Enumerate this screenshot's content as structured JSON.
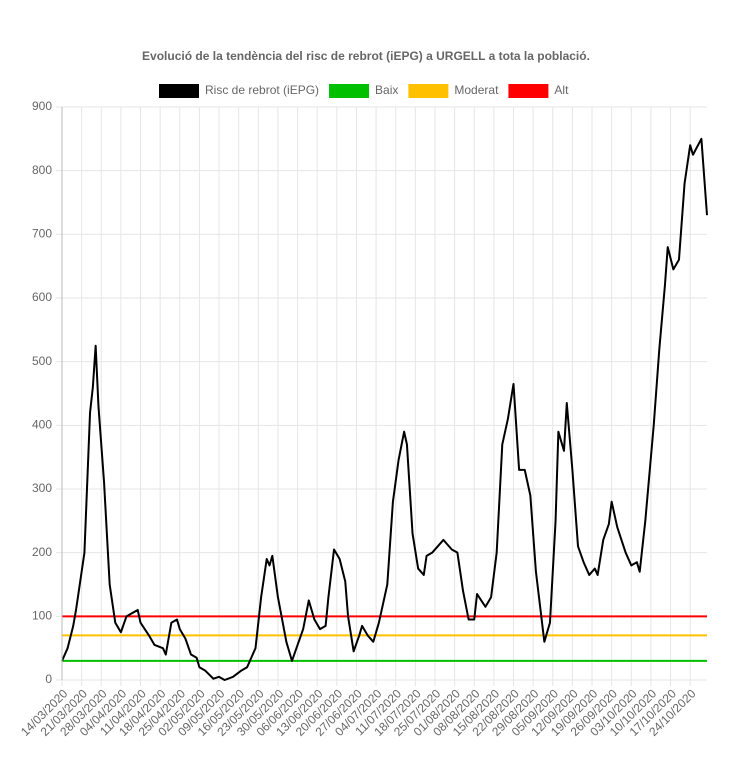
{
  "chart_data": {
    "type": "line",
    "title": "Evolució de la tendència del risc de rebrot (iEPG) a URGELL a tota la població.",
    "x": [
      "14/03/2020",
      "16/03/2020",
      "18/03/2020",
      "19/03/2020",
      "21/03/2020",
      "22/03/2020",
      "24/03/2020",
      "25/03/2020",
      "26/03/2020",
      "27/03/2020",
      "29/03/2020",
      "31/03/2020",
      "02/04/2020",
      "04/04/2020",
      "06/04/2020",
      "08/04/2020",
      "10/04/2020",
      "11/04/2020",
      "14/04/2020",
      "16/04/2020",
      "19/04/2020",
      "20/04/2020",
      "22/04/2020",
      "24/04/2020",
      "25/04/2020",
      "27/04/2020",
      "29/04/2020",
      "01/05/2020",
      "02/05/2020",
      "04/05/2020",
      "07/05/2020",
      "09/05/2020",
      "11/05/2020",
      "14/05/2020",
      "17/05/2020",
      "19/05/2020",
      "22/05/2020",
      "24/05/2020",
      "26/05/2020",
      "27/05/2020",
      "28/05/2020",
      "30/05/2020",
      "02/06/2020",
      "04/06/2020",
      "06/06/2020",
      "08/06/2020",
      "10/06/2020",
      "12/06/2020",
      "14/06/2020",
      "16/06/2020",
      "17/06/2020",
      "19/06/2020",
      "21/06/2020",
      "23/06/2020",
      "24/06/2020",
      "26/06/2020",
      "28/06/2020",
      "29/06/2020",
      "01/07/2020",
      "03/07/2020",
      "05/07/2020",
      "08/07/2020",
      "10/07/2020",
      "12/07/2020",
      "14/07/2020",
      "15/07/2020",
      "17/07/2020",
      "19/07/2020",
      "21/07/2020",
      "22/07/2020",
      "24/07/2020",
      "26/07/2020",
      "28/07/2020",
      "29/07/2020",
      "31/07/2020",
      "02/08/2020",
      "04/08/2020",
      "06/08/2020",
      "08/08/2020",
      "09/08/2020",
      "12/08/2020",
      "14/08/2020",
      "16/08/2020",
      "18/08/2020",
      "20/08/2020",
      "22/08/2020",
      "24/08/2020",
      "26/08/2020",
      "28/08/2020",
      "30/08/2020",
      "02/09/2020",
      "04/09/2020",
      "06/09/2020",
      "07/09/2020",
      "09/09/2020",
      "10/09/2020",
      "12/09/2020",
      "14/09/2020",
      "16/09/2020",
      "18/09/2020",
      "20/09/2020",
      "21/09/2020",
      "23/09/2020",
      "25/09/2020",
      "26/09/2020",
      "28/09/2020",
      "01/10/2020",
      "03/10/2020",
      "05/10/2020",
      "06/10/2020",
      "08/10/2020",
      "11/10/2020",
      "13/10/2020",
      "15/10/2020",
      "16/10/2020",
      "18/10/2020",
      "20/10/2020",
      "22/10/2020",
      "24/10/2020",
      "25/10/2020",
      "28/10/2020",
      "30/10/2020"
    ],
    "series": [
      {
        "name": "Risc de rebrot (iEPG)",
        "color": "#000000",
        "values": [
          30,
          50,
          85,
          110,
          170,
          200,
          420,
          460,
          525,
          430,
          310,
          150,
          90,
          75,
          100,
          105,
          110,
          90,
          70,
          55,
          50,
          40,
          90,
          95,
          80,
          65,
          40,
          35,
          20,
          15,
          2,
          5,
          0,
          5,
          15,
          20,
          50,
          130,
          190,
          180,
          195,
          130,
          60,
          30,
          55,
          80,
          125,
          95,
          80,
          85,
          130,
          205,
          190,
          155,
          100,
          45,
          70,
          85,
          70,
          60,
          90,
          150,
          280,
          345,
          390,
          370,
          230,
          175,
          165,
          195,
          200,
          210,
          220,
          215,
          205,
          200,
          140,
          95,
          95,
          135,
          115,
          130,
          200,
          370,
          410,
          465,
          330,
          330,
          290,
          170,
          60,
          90,
          250,
          390,
          360,
          435,
          330,
          210,
          185,
          165,
          175,
          165,
          220,
          245,
          280,
          240,
          200,
          180,
          185,
          170,
          250,
          400,
          520,
          620,
          680,
          645,
          660,
          780,
          840,
          825,
          850,
          730
        ]
      },
      {
        "name": "Baix",
        "color": "#00c000",
        "value": 30
      },
      {
        "name": "Moderat",
        "color": "#ffc000",
        "value": 70
      },
      {
        "name": "Alt",
        "color": "#ff0000",
        "value": 100
      }
    ],
    "xlim": [
      "14/03/2020",
      "30/10/2020"
    ],
    "xticks": [
      "14/03/2020",
      "21/03/2020",
      "28/03/2020",
      "04/04/2020",
      "11/04/2020",
      "18/04/2020",
      "25/04/2020",
      "02/05/2020",
      "09/05/2020",
      "16/05/2020",
      "23/05/2020",
      "30/05/2020",
      "06/06/2020",
      "13/06/2020",
      "20/06/2020",
      "27/06/2020",
      "04/07/2020",
      "11/07/2020",
      "18/07/2020",
      "25/07/2020",
      "01/08/2020",
      "08/08/2020",
      "15/08/2020",
      "22/08/2020",
      "29/08/2020",
      "05/09/2020",
      "12/09/2020",
      "19/09/2020",
      "26/09/2020",
      "03/10/2020",
      "10/10/2020",
      "17/10/2020",
      "24/10/2020"
    ],
    "ylim": [
      0,
      900
    ],
    "yticks": [
      0,
      100,
      200,
      300,
      400,
      500,
      600,
      700,
      800,
      900
    ],
    "grid": true
  }
}
